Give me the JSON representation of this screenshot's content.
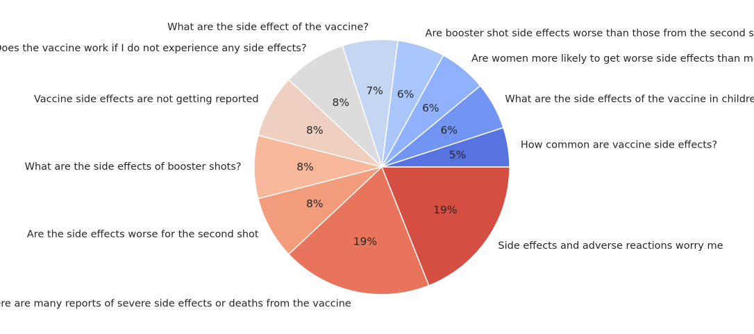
{
  "chart_data": {
    "type": "pie",
    "start_angle_deg": 0,
    "direction": "counterclockwise",
    "slices": [
      {
        "label": "How common are vaccine side effects?",
        "value": 5,
        "pct_label": "5%",
        "color": "#5673e0"
      },
      {
        "label": "What are the side effects of the vaccine in children?",
        "value": 6,
        "pct_label": "6%",
        "color": "#7295f4"
      },
      {
        "label": "Are women more likely to get worse side effects than men?",
        "value": 6,
        "pct_label": "6%",
        "color": "#90b2fe"
      },
      {
        "label": "Are booster shot side effects worse than those from the second shot?",
        "value": 6,
        "pct_label": "6%",
        "color": "#aac7fd"
      },
      {
        "label": "What are the side effect of the vaccine?",
        "value": 7,
        "pct_label": "7%",
        "color": "#c5d6f2"
      },
      {
        "label": "Does the vaccine work if I do not experience any side effects?",
        "value": 8,
        "pct_label": "8%",
        "color": "#dddcdc"
      },
      {
        "label": "Vaccine side effects are not getting reported",
        "value": 8,
        "pct_label": "8%",
        "color": "#efcfbf"
      },
      {
        "label": "What are the side effects of booster shots?",
        "value": 8,
        "pct_label": "8%",
        "color": "#f7b89c"
      },
      {
        "label": "Are the side effects worse for the second shot",
        "value": 8,
        "pct_label": "8%",
        "color": "#f39c7b"
      },
      {
        "label": "There are many reports of severe side effects or deaths from the vaccine",
        "value": 19,
        "pct_label": "19%",
        "color": "#e7745b"
      },
      {
        "label": "Side effects and adverse reactions worry me",
        "value": 19,
        "pct_label": "19%",
        "color": "#d44e41"
      }
    ]
  }
}
